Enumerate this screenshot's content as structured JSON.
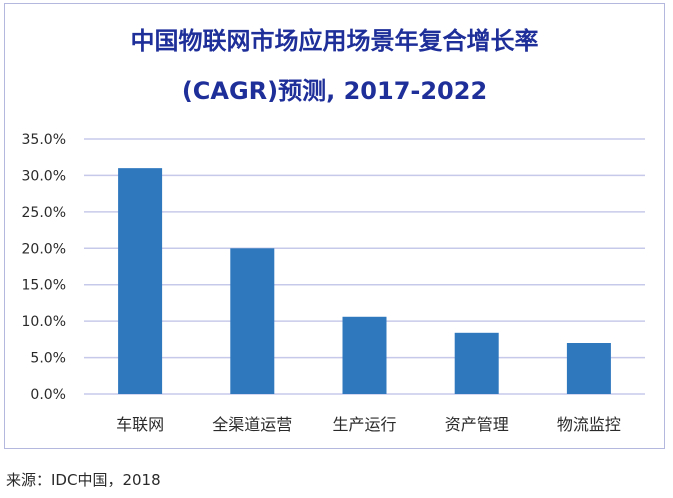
{
  "chart_data": {
    "type": "bar",
    "title_line1": "中国物联网市场应用场景年复合增长率",
    "title_line2": "(CAGR)预测, 2017-2022",
    "categories": [
      "车联网",
      "全渠道运营",
      "生产运行",
      "资产管理",
      "物流监控"
    ],
    "values": [
      31.0,
      20.0,
      10.6,
      8.4,
      7.0
    ],
    "value_unit": "%",
    "ylim": [
      0,
      35
    ],
    "yticks": [
      "0.0%",
      "5.0%",
      "10.0%",
      "15.0%",
      "20.0%",
      "25.0%",
      "30.0%",
      "35.0%"
    ],
    "grid": true,
    "legend": "none",
    "bar_color": "#2f78be",
    "grid_color": "#c7c9ea",
    "title_color": "#1f2f9a"
  },
  "footer": {
    "source": "来源：IDC中国，2018"
  }
}
